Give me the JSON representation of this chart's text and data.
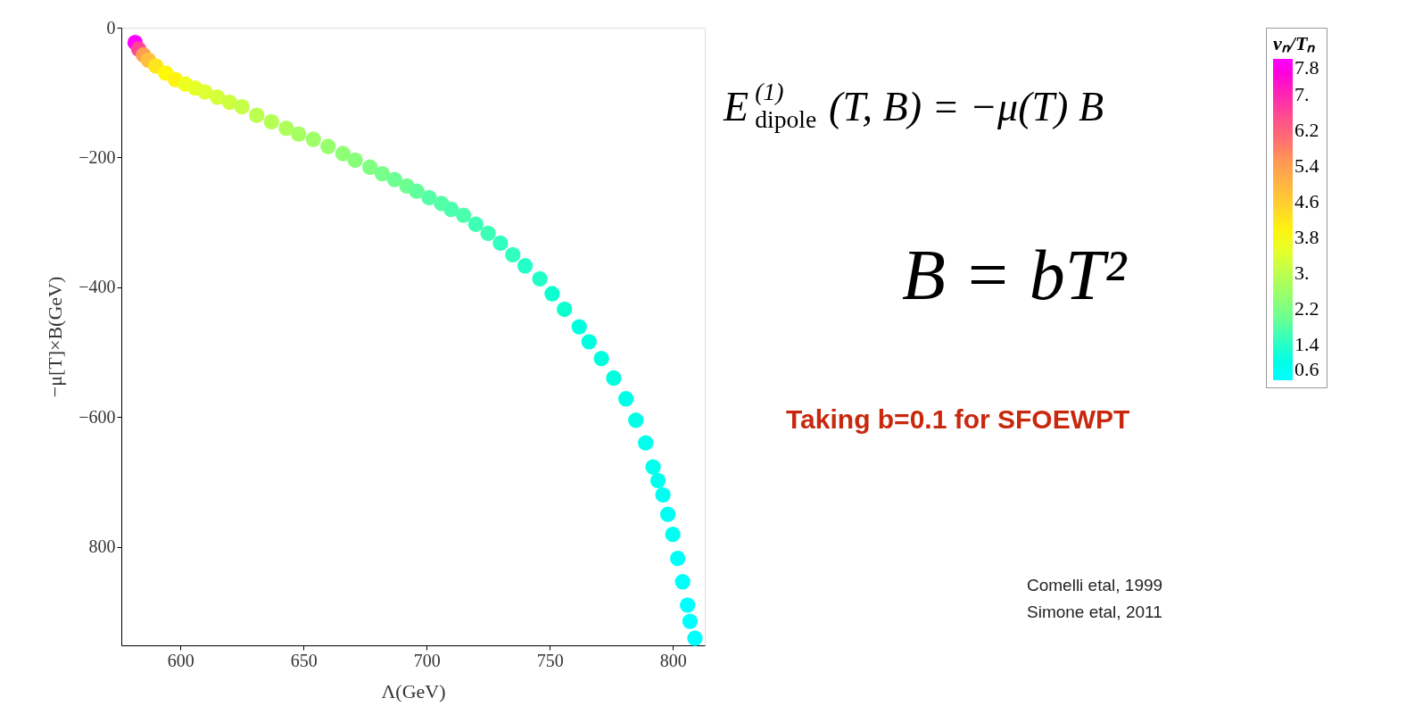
{
  "chart_data": {
    "type": "scatter",
    "xlabel": "Λ(GeV)",
    "ylabel": "−μ[T]×B(GeV)",
    "clabel": "vₙ/Tₙ",
    "xlim": [
      576,
      813
    ],
    "xticks": [
      600,
      650,
      700,
      750,
      800
    ],
    "ylim": [
      -952,
      0
    ],
    "yticks": [
      0,
      -200,
      -400,
      -600,
      {
        "value": -800,
        "label": "800"
      }
    ],
    "clim": [
      0.6,
      7.8
    ],
    "cticks": [
      0.6,
      1.4,
      2.2,
      {
        "value": 3,
        "label": "3."
      },
      3.8,
      4.6,
      5.4,
      6.2,
      {
        "value": 7,
        "label": "7."
      },
      7.8
    ],
    "marker": "circle",
    "grid": false,
    "x": [
      581.6,
      583,
      585,
      587,
      590,
      594,
      598,
      602,
      606,
      610,
      615,
      620,
      625,
      631,
      637,
      643,
      648,
      654,
      660,
      666,
      671,
      677,
      682,
      687,
      692,
      696,
      701,
      706,
      710,
      715,
      720,
      725,
      730,
      735,
      740,
      746,
      751,
      756,
      762,
      766,
      771,
      776,
      781,
      785,
      789,
      792,
      794,
      796,
      798,
      800,
      802,
      804,
      806,
      807,
      809
    ],
    "values": [
      -23,
      -33,
      -42,
      -50,
      -59,
      -70,
      -80,
      -87,
      -93,
      -99,
      -107,
      -115,
      -122,
      -135,
      -145,
      -155,
      -164,
      -172,
      -183,
      -194,
      -204,
      -215,
      -225,
      -234,
      -244,
      -252,
      -262,
      -271,
      -280,
      -289,
      -303,
      -317,
      -332,
      -350,
      -367,
      -387,
      -410,
      -434,
      -461,
      -484,
      -510,
      -540,
      -572,
      -605,
      -640,
      -677,
      -698,
      -720,
      -750,
      -781,
      -818,
      -854,
      -890,
      -915,
      -941
    ],
    "cvalues": [
      7.8,
      6.6,
      5.4,
      4.8,
      4.2,
      3.9,
      4.0,
      3.6,
      3.5,
      3.4,
      3.3,
      3.2,
      3.1,
      3.0,
      2.9,
      2.8,
      2.7,
      2.6,
      2.5,
      2.4,
      2.3,
      2.2,
      2.1,
      2.0,
      2.0,
      1.9,
      1.8,
      1.8,
      1.7,
      1.7,
      1.6,
      1.6,
      1.5,
      1.5,
      1.4,
      1.4,
      1.3,
      1.3,
      1.1,
      1.1,
      1.1,
      1.1,
      1.0,
      1.0,
      0.9,
      0.9,
      0.9,
      0.8,
      0.8,
      0.8,
      0.7,
      0.7,
      0.6,
      0.6,
      0.6
    ],
    "annotations": [
      "E$_{dipole}$$^{(1)}$(T, B) = −μ(T) B",
      "B = bT²",
      "Taking b=0.1 for SFOEWPT",
      "Comelli etal, 1999",
      "Simone etal, 2011"
    ]
  }
}
